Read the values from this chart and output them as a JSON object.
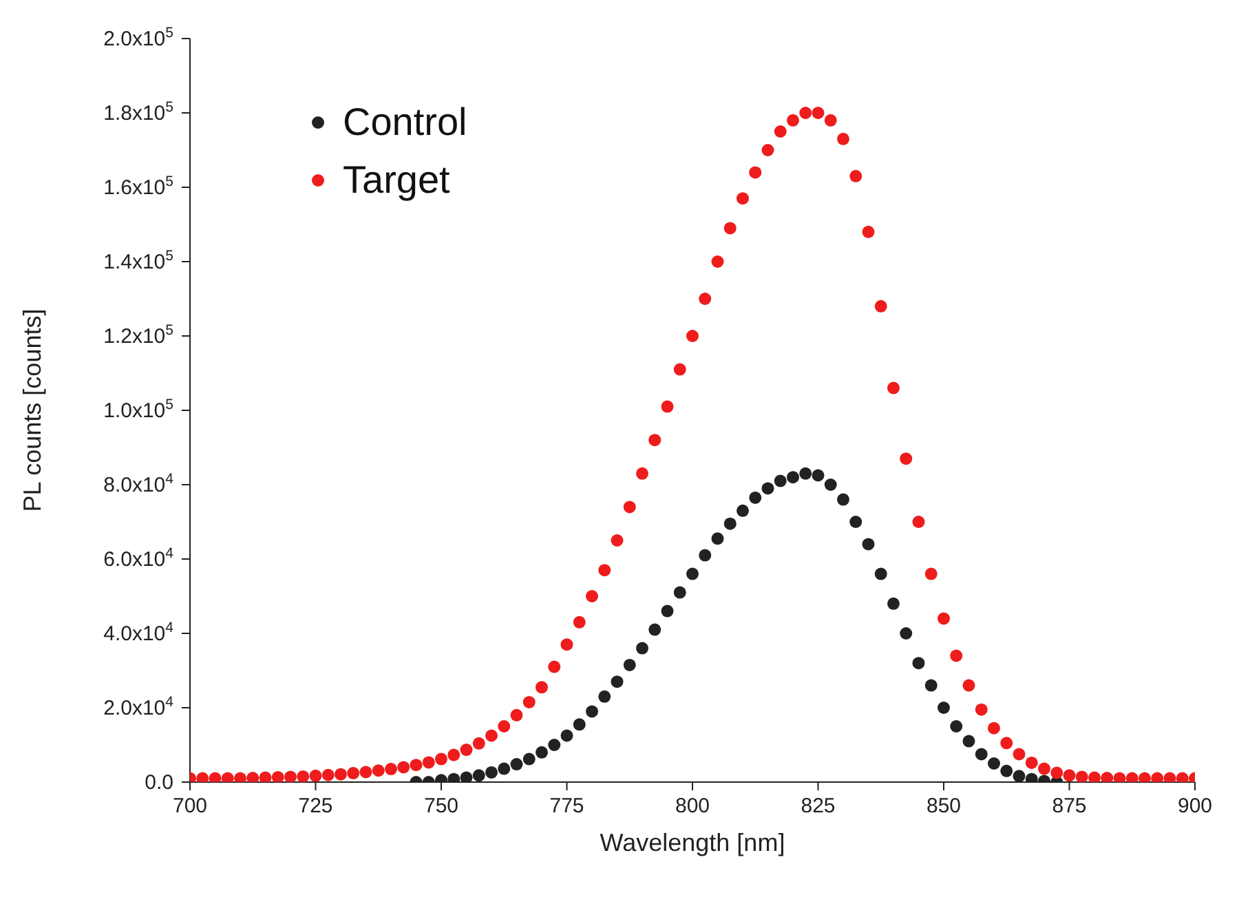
{
  "chart_data": {
    "type": "scatter",
    "xlabel": "Wavelength [nm]",
    "ylabel": "PL counts [counts]",
    "xlim": [
      700,
      900
    ],
    "xticks": [
      700,
      725,
      750,
      775,
      800,
      825,
      850,
      875,
      900
    ],
    "ylim": [
      0,
      200000
    ],
    "yticks": [
      {
        "value": 0,
        "label": "0.0"
      },
      {
        "value": 20000,
        "label": "2.0x10$^{4}$"
      },
      {
        "value": 40000,
        "label": "4.0x10$^{4}$"
      },
      {
        "value": 60000,
        "label": "6.0x10$^{4}$"
      },
      {
        "value": 80000,
        "label": "8.0x10$^{4}$"
      },
      {
        "value": 100000,
        "label": "1.0x10$^{5}$"
      },
      {
        "value": 120000,
        "label": "1.2x10$^{5}$"
      },
      {
        "value": 140000,
        "label": "1.4x10$^{5}$"
      },
      {
        "value": 160000,
        "label": "1.6x10$^{5}$"
      },
      {
        "value": 180000,
        "label": "1.8x10$^{5}$"
      },
      {
        "value": 200000,
        "label": "2.0x10$^{5}$"
      }
    ],
    "grid": false,
    "legend": "top left",
    "marker": "circle",
    "series": [
      {
        "name": "Control",
        "color": "#222222",
        "x": [
          745,
          747.5,
          750,
          752.5,
          755,
          757.5,
          760,
          762.5,
          765,
          767.5,
          770,
          772.5,
          775,
          777.5,
          780,
          782.5,
          785,
          787.5,
          790,
          792.5,
          795,
          797.5,
          800,
          802.5,
          805,
          807.5,
          810,
          812.5,
          815,
          817.5,
          820,
          822.5,
          825,
          827.5,
          830,
          832.5,
          835,
          837.5,
          840,
          842.5,
          845,
          847.5,
          850,
          852.5,
          855,
          857.5,
          860,
          862.5,
          865,
          867.5,
          870,
          872.5
        ],
        "values": [
          0,
          0,
          500,
          800,
          1200,
          1800,
          2600,
          3600,
          4800,
          6200,
          8000,
          10000,
          12500,
          15500,
          19000,
          23000,
          27000,
          31500,
          36000,
          41000,
          46000,
          51000,
          56000,
          61000,
          65500,
          69500,
          73000,
          76500,
          79000,
          81000,
          82000,
          83000,
          82500,
          80000,
          76000,
          70000,
          64000,
          56000,
          48000,
          40000,
          32000,
          26000,
          20000,
          15000,
          11000,
          7500,
          5000,
          3000,
          1600,
          800,
          300,
          0
        ]
      },
      {
        "name": "Target",
        "color": "#ee1c1c",
        "x": [
          700,
          702.5,
          705,
          707.5,
          710,
          712.5,
          715,
          717.5,
          720,
          722.5,
          725,
          727.5,
          730,
          732.5,
          735,
          737.5,
          740,
          742.5,
          745,
          747.5,
          750,
          752.5,
          755,
          757.5,
          760,
          762.5,
          765,
          767.5,
          770,
          772.5,
          775,
          777.5,
          780,
          782.5,
          785,
          787.5,
          790,
          792.5,
          795,
          797.5,
          800,
          802.5,
          805,
          807.5,
          810,
          812.5,
          815,
          817.5,
          820,
          822.5,
          825,
          827.5,
          830,
          832.5,
          835,
          837.5,
          840,
          842.5,
          845,
          847.5,
          850,
          852.5,
          855,
          857.5,
          860,
          862.5,
          865,
          867.5,
          870,
          872.5,
          875,
          877.5,
          880,
          882.5,
          885,
          887.5,
          890,
          892.5,
          895,
          897.5,
          900
        ],
        "values": [
          1000,
          1000,
          1000,
          1000,
          1000,
          1100,
          1200,
          1300,
          1400,
          1500,
          1700,
          1900,
          2100,
          2400,
          2700,
          3100,
          3500,
          4000,
          4600,
          5300,
          6200,
          7300,
          8700,
          10400,
          12500,
          15000,
          18000,
          21500,
          25500,
          31000,
          37000,
          43000,
          50000,
          57000,
          65000,
          74000,
          83000,
          92000,
          101000,
          111000,
          120000,
          130000,
          140000,
          149000,
          157000,
          164000,
          170000,
          175000,
          178000,
          180000,
          180000,
          178000,
          173000,
          163000,
          148000,
          128000,
          106000,
          87000,
          70000,
          56000,
          44000,
          34000,
          26000,
          19500,
          14500,
          10500,
          7500,
          5200,
          3600,
          2500,
          1800,
          1400,
          1200,
          1100,
          1000,
          1000,
          1000,
          1000,
          1000,
          1000,
          1000
        ]
      }
    ]
  }
}
